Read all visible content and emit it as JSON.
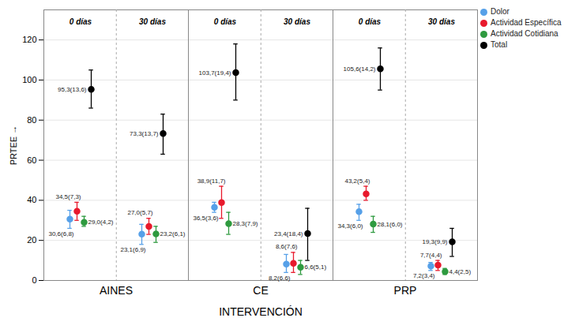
{
  "chart_data": {
    "type": "errorbar",
    "x_label": "INTERVENCIÓN",
    "y_label": "PRTEE",
    "categories": [
      "AINES",
      "CE",
      "PRP"
    ],
    "periods": [
      "0 días",
      "30 días"
    ],
    "ylim": [
      0,
      135
    ],
    "yticks": [
      0,
      20,
      40,
      60,
      80,
      100,
      120
    ],
    "grid": true,
    "legend": "top-right",
    "data_labels": true,
    "series": [
      {
        "name": "Dolor",
        "color": "#56a0e8",
        "values": [
          [
            30.6,
            23.1
          ],
          [
            36.5,
            8.2
          ],
          [
            34.3,
            7.2
          ]
        ],
        "error_low": [
          [
            26,
            18
          ],
          [
            34,
            4
          ],
          [
            30,
            5
          ]
        ],
        "error_high": [
          [
            35,
            28
          ],
          [
            39,
            13
          ],
          [
            38,
            9
          ]
        ],
        "value_labels": [
          [
            "30,6(6,8)",
            "23,1(6,9)"
          ],
          [
            "36,5(3,6)",
            "8,2(6,6)"
          ],
          [
            "34,3(6,0)",
            "7,2(3,4)"
          ]
        ]
      },
      {
        "name": "Actividad Específica",
        "color": "#e8192c",
        "values": [
          [
            34.5,
            27.0
          ],
          [
            38.9,
            8.6
          ],
          [
            43.2,
            7.7
          ]
        ],
        "error_low": [
          [
            30,
            23
          ],
          [
            31,
            4
          ],
          [
            40,
            5
          ]
        ],
        "error_high": [
          [
            39,
            31
          ],
          [
            47,
            14
          ],
          [
            47,
            10
          ]
        ],
        "value_labels": [
          [
            "34,5(7,3)",
            "27,0(5,7)"
          ],
          [
            "38,9(11,7)",
            "8,6(7,6)"
          ],
          [
            "43,2(5,4)",
            "7,7(4,4)"
          ]
        ]
      },
      {
        "name": "Actividad Cotidiana",
        "color": "#2e9a3f",
        "values": [
          [
            29.0,
            23.2
          ],
          [
            28.3,
            6.6
          ],
          [
            28.1,
            4.4
          ]
        ],
        "error_low": [
          [
            27,
            19
          ],
          [
            23,
            3
          ],
          [
            24,
            3
          ]
        ],
        "error_high": [
          [
            32,
            27
          ],
          [
            34,
            10
          ],
          [
            32,
            6
          ]
        ],
        "value_labels": [
          [
            "29,0(4,2)",
            "23,2(6,1)"
          ],
          [
            "28,3(7,9)",
            "6,6(5,1)"
          ],
          [
            "28,1(6,0)",
            "4,4(2,5)"
          ]
        ]
      },
      {
        "name": "Total",
        "color": "#000000",
        "values": [
          [
            95.3,
            73.3
          ],
          [
            103.7,
            23.4
          ],
          [
            105.6,
            19.3
          ]
        ],
        "error_low": [
          [
            86,
            63
          ],
          [
            90,
            10
          ],
          [
            95,
            12
          ]
        ],
        "error_high": [
          [
            105,
            83
          ],
          [
            118,
            36
          ],
          [
            116,
            26
          ]
        ],
        "value_labels": [
          [
            "95,3(13,6)",
            "73,3(13,7)"
          ],
          [
            "103,7(19,4)",
            "23,4(18,4)"
          ],
          [
            "105,6(14,2)",
            "19,3(9,9)"
          ]
        ]
      }
    ]
  }
}
